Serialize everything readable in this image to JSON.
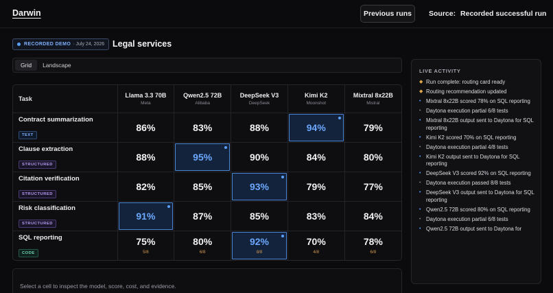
{
  "app": {
    "brand": "Darwin"
  },
  "header": {
    "previous_runs": "Previous runs",
    "source_label": "Source:",
    "source_value": "Recorded successful run"
  },
  "demo_badge": {
    "title": "RECORDED DEMO",
    "date": "· July 24, 2026"
  },
  "section": {
    "title": "Legal services"
  },
  "view_tabs": [
    {
      "label": "Grid",
      "active": true
    },
    {
      "label": "Landscape",
      "active": false
    }
  ],
  "grid": {
    "task_header": "Task",
    "models": [
      {
        "name": "Llama 3.3 70B",
        "org": "Meta"
      },
      {
        "name": "Qwen2.5 72B",
        "org": "Alibaba"
      },
      {
        "name": "DeepSeek V3",
        "org": "DeepSeek"
      },
      {
        "name": "Kimi K2",
        "org": "Moonshot"
      },
      {
        "name": "Mixtral 8x22B",
        "org": "Mistral"
      }
    ],
    "rows": [
      {
        "task": "Contract summarization",
        "type": "TEXT",
        "type_class": "type-text",
        "scores": [
          "86%",
          "83%",
          "88%",
          "94%",
          "79%"
        ],
        "subs": [
          "",
          "",
          "",
          "",
          ""
        ],
        "best": 3
      },
      {
        "task": "Clause extraction",
        "type": "STRUCTURED",
        "type_class": "type-structured",
        "scores": [
          "88%",
          "95%",
          "90%",
          "84%",
          "80%"
        ],
        "subs": [
          "",
          "",
          "",
          "",
          ""
        ],
        "best": 1
      },
      {
        "task": "Citation verification",
        "type": "STRUCTURED",
        "type_class": "type-structured",
        "scores": [
          "82%",
          "85%",
          "93%",
          "79%",
          "77%"
        ],
        "subs": [
          "",
          "",
          "",
          "",
          ""
        ],
        "best": 2
      },
      {
        "task": "Risk classification",
        "type": "STRUCTURED",
        "type_class": "type-structured",
        "scores": [
          "91%",
          "87%",
          "85%",
          "83%",
          "84%"
        ],
        "subs": [
          "",
          "",
          "",
          "",
          ""
        ],
        "best": 0
      },
      {
        "task": "SQL reporting",
        "type": "CODE",
        "type_class": "type-code",
        "scores": [
          "75%",
          "80%",
          "92%",
          "70%",
          "78%"
        ],
        "subs": [
          "5/8",
          "6/8",
          "8/8",
          "4/8",
          "6/8"
        ],
        "best": 2
      }
    ]
  },
  "inspect": {
    "hint": "Select a cell to inspect the model, score, cost, and evidence."
  },
  "activity": {
    "title": "LIVE ACTIVITY",
    "items": [
      {
        "kind": "diamond",
        "text": "Run complete: routing card ready"
      },
      {
        "kind": "diamond",
        "text": "Routing recommendation updated"
      },
      {
        "kind": "blue",
        "text": "Mixtral 8x22B scored 78% on SQL reporting"
      },
      {
        "kind": "grey",
        "text": "Daytona execution partial 6/8 tests"
      },
      {
        "kind": "blue",
        "text": "Mixtral 8x22B output sent to Daytona for SQL reporting"
      },
      {
        "kind": "blue",
        "text": "Kimi K2 scored 70% on SQL reporting"
      },
      {
        "kind": "grey",
        "text": "Daytona execution partial 4/8 tests"
      },
      {
        "kind": "blue",
        "text": "Kimi K2 output sent to Daytona for SQL reporting"
      },
      {
        "kind": "blue",
        "text": "DeepSeek V3 scored 92% on SQL reporting"
      },
      {
        "kind": "grey",
        "text": "Daytona execution passed 8/8 tests"
      },
      {
        "kind": "blue",
        "text": "DeepSeek V3 output sent to Daytona for SQL reporting"
      },
      {
        "kind": "blue",
        "text": "Qwen2.5 72B scored 80% on SQL reporting"
      },
      {
        "kind": "grey",
        "text": "Daytona execution partial 6/8 tests"
      },
      {
        "kind": "blue",
        "text": "Qwen2.5 72B output sent to Daytona for"
      }
    ]
  }
}
